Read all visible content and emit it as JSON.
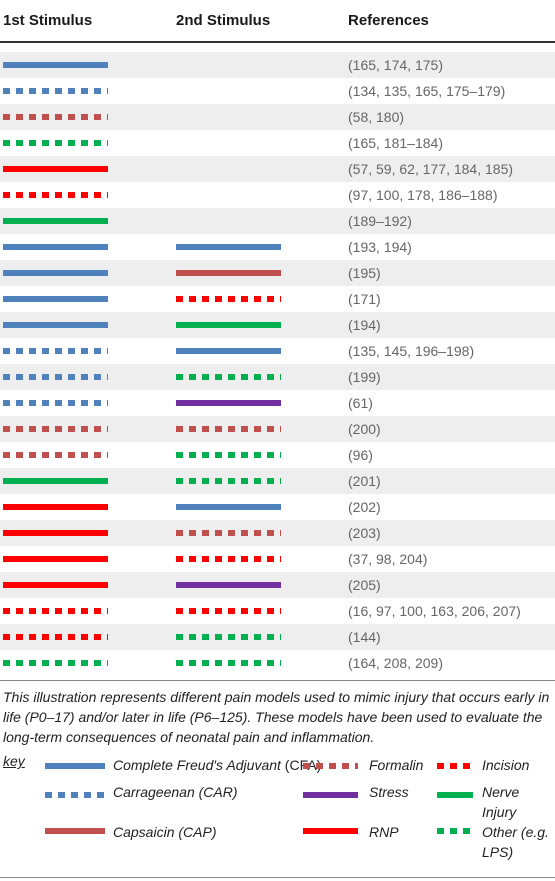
{
  "header": {
    "col1": "1st Stimulus",
    "col2": "2nd Stimulus",
    "col3": "References"
  },
  "styles": {
    "cfa": {
      "color": "#4f81bd",
      "pattern": "solid"
    },
    "car": {
      "color": "#4f81bd",
      "pattern": "dashed"
    },
    "cap": {
      "color": "#c0504d",
      "pattern": "solid"
    },
    "form": {
      "color": "#c0504d",
      "pattern": "dashed"
    },
    "stress": {
      "color": "#7030a0",
      "pattern": "solid"
    },
    "rnp": {
      "color": "#ff0000",
      "pattern": "solid"
    },
    "inc": {
      "color": "#ff0000",
      "pattern": "dashed"
    },
    "nerve": {
      "color": "#00b050",
      "pattern": "solid"
    },
    "other": {
      "color": "#00b050",
      "pattern": "dashed"
    }
  },
  "rows": [
    {
      "s1": "cfa",
      "s2": "",
      "refs": "165, 174, 175"
    },
    {
      "s1": "car",
      "s2": "",
      "refs": "134, 135, 165, 175–179"
    },
    {
      "s1": "form",
      "s2": "",
      "refs": "58, 180"
    },
    {
      "s1": "other",
      "s2": "",
      "refs": "165, 181–184"
    },
    {
      "s1": "rnp",
      "s2": "",
      "refs": "57, 59, 62, 177, 184, 185"
    },
    {
      "s1": "inc",
      "s2": "",
      "refs": "97, 100, 178, 186–188"
    },
    {
      "s1": "nerve",
      "s2": "",
      "refs": "189–192"
    },
    {
      "s1": "cfa",
      "s2": "cfa",
      "refs": "193, 194"
    },
    {
      "s1": "cfa",
      "s2": "cap",
      "refs": "195"
    },
    {
      "s1": "cfa",
      "s2": "inc",
      "refs": "171"
    },
    {
      "s1": "cfa",
      "s2": "nerve",
      "refs": "194"
    },
    {
      "s1": "car",
      "s2": "cfa",
      "refs": "135, 145, 196–198"
    },
    {
      "s1": "car",
      "s2": "other",
      "refs": "199"
    },
    {
      "s1": "car",
      "s2": "stress",
      "refs": "61"
    },
    {
      "s1": "form",
      "s2": "form",
      "refs": "200"
    },
    {
      "s1": "form",
      "s2": "other",
      "refs": "96"
    },
    {
      "s1": "nerve",
      "s2": "other",
      "refs": "201"
    },
    {
      "s1": "rnp",
      "s2": "cfa",
      "refs": "202"
    },
    {
      "s1": "rnp",
      "s2": "form",
      "refs": "203"
    },
    {
      "s1": "rnp",
      "s2": "inc",
      "refs": "37, 98, 204"
    },
    {
      "s1": "rnp",
      "s2": "stress",
      "refs": "205"
    },
    {
      "s1": "inc",
      "s2": "inc",
      "refs": "16, 97, 100, 163, 206, 207"
    },
    {
      "s1": "inc",
      "s2": "other",
      "refs": "144"
    },
    {
      "s1": "other",
      "s2": "other",
      "refs": "164, 208, 209"
    }
  ],
  "caption": "This illustration represents different pain models used to mimic injury that occurs early in life (P0–17) and/or later in life (P6–125). These models have been used to evaluate the long-term consequences of neonatal pain and inflammation.",
  "key": {
    "label": "key",
    "cfa_name": "Complete Freud's Adjuvant",
    "cfa_abbr": "(CFA)",
    "car_name": "Carrageenan (CAR)",
    "cap_name": "Capsaicin (CAP)",
    "form_name": "Formalin",
    "stress_name": "Stress",
    "rnp_name": "RNP",
    "inc_name": "Incision",
    "nerve_name": "Nerve Injury",
    "other_name": "Other (e.g. LPS)"
  }
}
